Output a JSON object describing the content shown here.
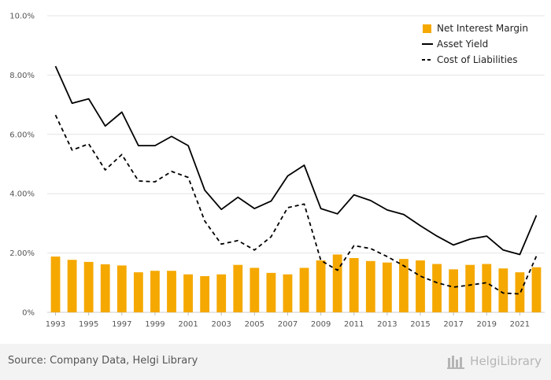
{
  "chart_data": {
    "type": "bar",
    "categories": [
      "1993",
      "1994",
      "1995",
      "1996",
      "1997",
      "1998",
      "1999",
      "2000",
      "2001",
      "2002",
      "2003",
      "2004",
      "2005",
      "2006",
      "2007",
      "2008",
      "2009",
      "2010",
      "2011",
      "2012",
      "2013",
      "2014",
      "2015",
      "2016",
      "2017",
      "2018",
      "2019",
      "2020",
      "2021",
      "2022"
    ],
    "x_tick_labels": [
      "1993",
      "1995",
      "1997",
      "1999",
      "2001",
      "2003",
      "2005",
      "2007",
      "2009",
      "2011",
      "2013",
      "2015",
      "2017",
      "2019",
      "2021"
    ],
    "y_tick_labels": [
      "0%",
      "2.00%",
      "4.00%",
      "6.00%",
      "8.00%",
      "10.0%"
    ],
    "ylim": [
      0,
      10
    ],
    "grid": true,
    "legend_position": "top-right",
    "series": [
      {
        "name": "Net Interest Margin",
        "type": "bar",
        "color": "#f5a800",
        "values": [
          1.88,
          1.77,
          1.7,
          1.62,
          1.58,
          1.35,
          1.4,
          1.4,
          1.28,
          1.22,
          1.28,
          1.6,
          1.5,
          1.33,
          1.28,
          1.5,
          1.75,
          1.95,
          1.83,
          1.73,
          1.68,
          1.8,
          1.75,
          1.63,
          1.45,
          1.6,
          1.63,
          1.48,
          1.35,
          1.52
        ]
      },
      {
        "name": "Asset Yield",
        "type": "line",
        "style": "solid",
        "color": "#000000",
        "values": [
          8.3,
          7.05,
          7.2,
          6.28,
          6.75,
          5.62,
          5.62,
          5.93,
          5.62,
          4.12,
          3.47,
          3.88,
          3.5,
          3.75,
          4.6,
          4.96,
          3.5,
          3.32,
          3.96,
          3.77,
          3.45,
          3.3,
          2.92,
          2.57,
          2.27,
          2.47,
          2.57,
          2.1,
          1.95,
          3.27
        ]
      },
      {
        "name": "Cost of Liabilities",
        "type": "line",
        "style": "dashed",
        "color": "#000000",
        "values": [
          6.65,
          5.47,
          5.68,
          4.8,
          5.32,
          4.43,
          4.4,
          4.75,
          4.55,
          3.08,
          2.3,
          2.42,
          2.1,
          2.55,
          3.53,
          3.65,
          1.75,
          1.42,
          2.25,
          2.15,
          1.88,
          1.57,
          1.22,
          1.0,
          0.85,
          0.92,
          1.0,
          0.65,
          0.62,
          1.9
        ]
      }
    ]
  },
  "footer": {
    "source": "Source: Company Data, Helgi Library",
    "brand": "HelgiLibrary"
  }
}
